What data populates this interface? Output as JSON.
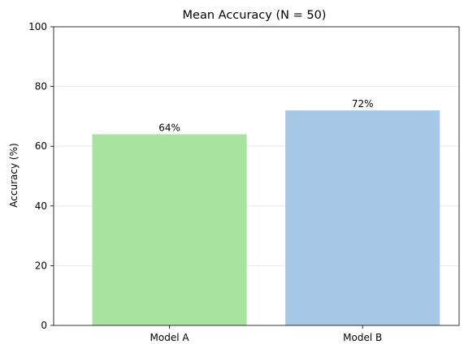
{
  "chart_data": {
    "type": "bar",
    "title": "Mean Accuracy (N = 50)",
    "xlabel": "",
    "ylabel": "Accuracy (%)",
    "categories": [
      "Model A",
      "Model B"
    ],
    "values": [
      64,
      72
    ],
    "data_labels": [
      "64%",
      "72%"
    ],
    "colors": [
      "#a8e4a0",
      "#a7c7e7"
    ],
    "ylim": [
      0,
      100
    ],
    "yticks": [
      0,
      20,
      40,
      60,
      80,
      100
    ],
    "ytick_labels": [
      "0",
      "20",
      "40",
      "60",
      "80",
      "100"
    ],
    "grid": "y",
    "legend": "none"
  }
}
